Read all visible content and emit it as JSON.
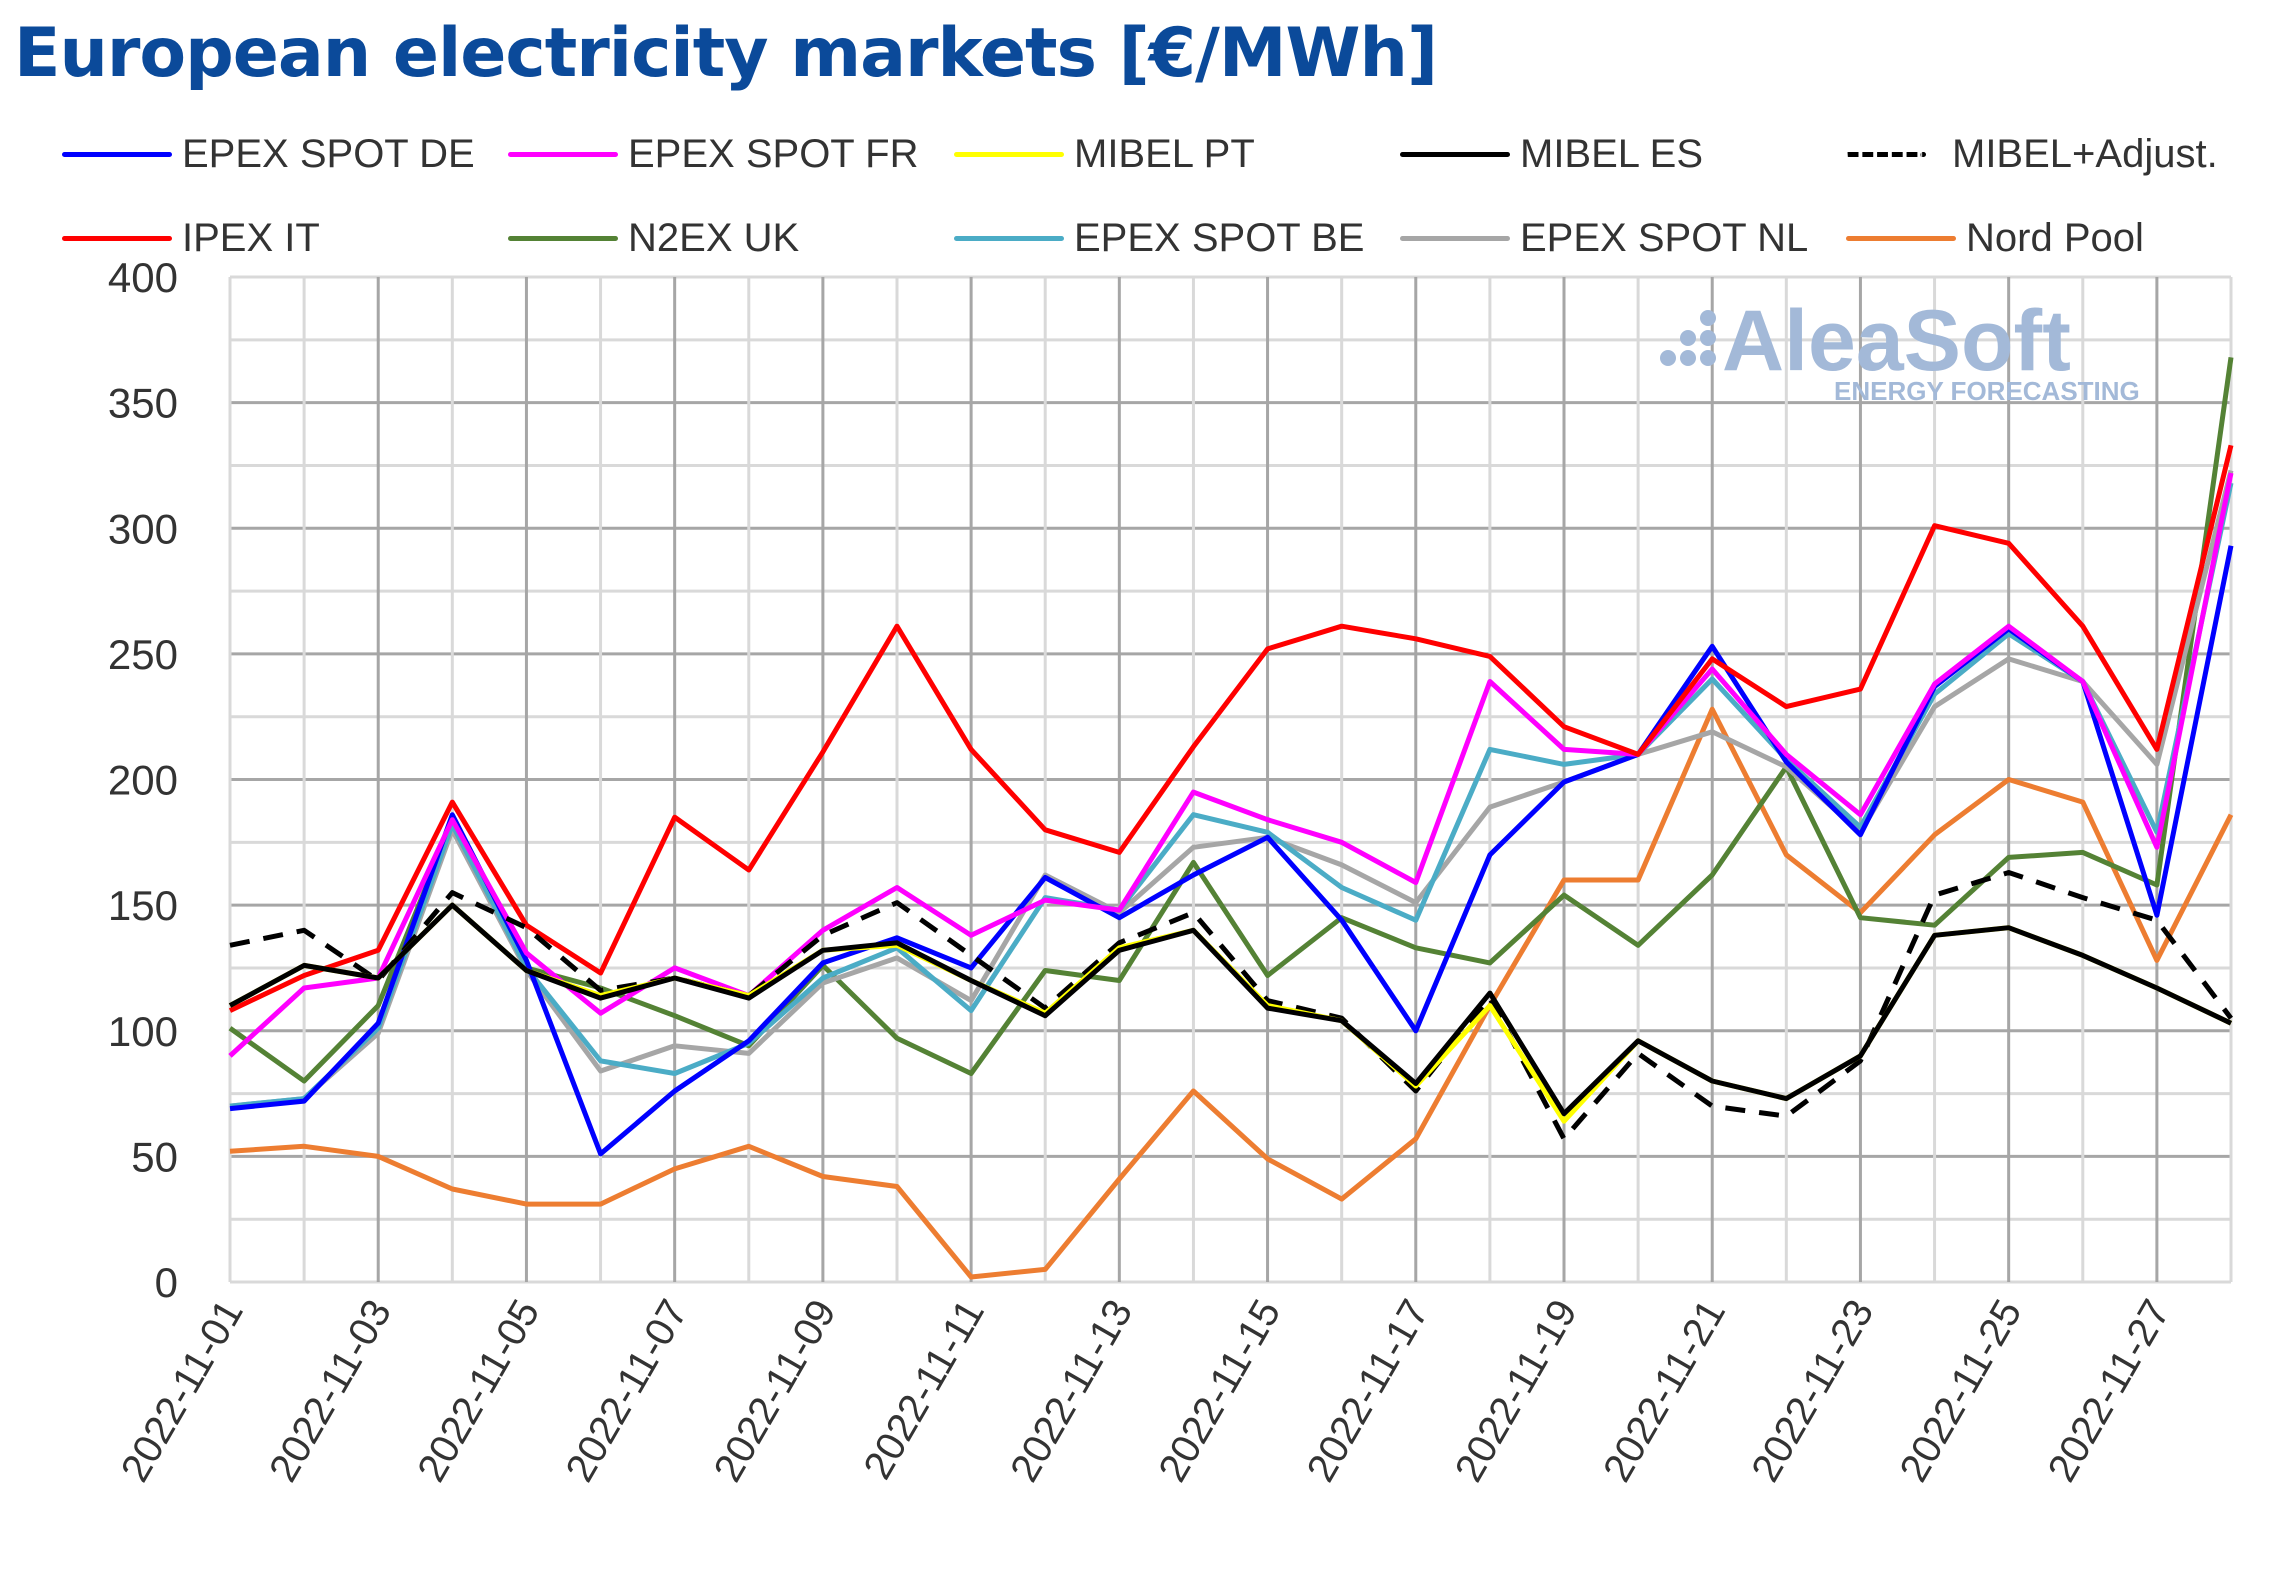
{
  "title": "European electricity markets [€/MWh]",
  "colors": {
    "title": "#0b4a9a",
    "grid_major": "#a6a6a6",
    "grid_minor": "#d9d9d9",
    "logo": "#a3b9d8"
  },
  "logo": {
    "name": "AleaSoft",
    "tagline": "ENERGY FORECASTING"
  },
  "chart_data": {
    "type": "line",
    "title": "European electricity markets [€/MWh]",
    "xlabel": "",
    "ylabel": "",
    "ylim": [
      0,
      400
    ],
    "yticks": [
      0,
      50,
      100,
      150,
      200,
      250,
      300,
      350,
      400
    ],
    "ytick_labels": [
      "0",
      "50",
      "100",
      "150",
      "200",
      "250",
      "300",
      "350",
      "400"
    ],
    "grid": true,
    "legend_position": "top",
    "x": [
      "2022-11-01",
      "2022-11-02",
      "2022-11-03",
      "2022-11-04",
      "2022-11-05",
      "2022-11-06",
      "2022-11-07",
      "2022-11-08",
      "2022-11-09",
      "2022-11-10",
      "2022-11-11",
      "2022-11-12",
      "2022-11-13",
      "2022-11-14",
      "2022-11-15",
      "2022-11-16",
      "2022-11-17",
      "2022-11-18",
      "2022-11-19",
      "2022-11-20",
      "2022-11-21",
      "2022-11-22",
      "2022-11-23",
      "2022-11-24",
      "2022-11-25",
      "2022-11-26",
      "2022-11-27",
      "2022-11-28"
    ],
    "xtick_labels": [
      "2022-11-01",
      "2022-11-03",
      "2022-11-05",
      "2022-11-07",
      "2022-11-09",
      "2022-11-11",
      "2022-11-13",
      "2022-11-15",
      "2022-11-17",
      "2022-11-19",
      "2022-11-21",
      "2022-11-23",
      "2022-11-25",
      "2022-11-27"
    ],
    "series": [
      {
        "name": "EPEX SPOT DE",
        "color": "#0000ff",
        "dash": false,
        "values": [
          69,
          72,
          103,
          186,
          128,
          51,
          76,
          96,
          127,
          137,
          125,
          161,
          145,
          162,
          177,
          144,
          100,
          170,
          199,
          210,
          253,
          207,
          178,
          237,
          260,
          239,
          146,
          293
        ]
      },
      {
        "name": "EPEX SPOT FR",
        "color": "#ff00ff",
        "dash": false,
        "values": [
          90,
          117,
          121,
          184,
          131,
          107,
          125,
          114,
          140,
          157,
          138,
          152,
          148,
          195,
          184,
          175,
          159,
          239,
          212,
          210,
          244,
          210,
          186,
          238,
          261,
          239,
          173,
          322
        ]
      },
      {
        "name": "MIBEL PT",
        "color": "#ffff00",
        "dash": false,
        "values": [
          110,
          126,
          121,
          150,
          124,
          114,
          121,
          114,
          132,
          134,
          120,
          107,
          133,
          140,
          110,
          104,
          78,
          110,
          64,
          96,
          80,
          73,
          90,
          138,
          141,
          130,
          117,
          103
        ]
      },
      {
        "name": "MIBEL ES",
        "color": "#000000",
        "dash": false,
        "values": [
          110,
          126,
          121,
          150,
          124,
          113,
          121,
          113,
          132,
          135,
          120,
          106,
          132,
          140,
          109,
          104,
          79,
          115,
          67,
          96,
          80,
          73,
          90,
          138,
          141,
          130,
          117,
          103
        ]
      },
      {
        "name": "MIBEL+Adjust.",
        "color": "#000000",
        "dash": true,
        "values": [
          134,
          140,
          120,
          155,
          141,
          116,
          121,
          114,
          138,
          151,
          130,
          109,
          135,
          147,
          112,
          105,
          76,
          113,
          57,
          91,
          70,
          66,
          88,
          154,
          163,
          153,
          144,
          105
        ]
      },
      {
        "name": "IPEX IT",
        "color": "#ff0000",
        "dash": false,
        "values": [
          108,
          122,
          132,
          191,
          142,
          123,
          185,
          164,
          211,
          261,
          212,
          180,
          171,
          213,
          252,
          261,
          256,
          249,
          221,
          210,
          248,
          229,
          236,
          301,
          294,
          261,
          212,
          333
        ]
      },
      {
        "name": "N2EX UK",
        "color": "#548235",
        "dash": false,
        "values": [
          101,
          80,
          110,
          183,
          125,
          117,
          106,
          94,
          126,
          97,
          83,
          124,
          120,
          167,
          122,
          145,
          133,
          127,
          154,
          134,
          162,
          205,
          145,
          142,
          169,
          171,
          158,
          368
        ]
      },
      {
        "name": "EPEX SPOT BE",
        "color": "#4bacc6",
        "dash": false,
        "values": [
          70,
          73,
          101,
          182,
          125,
          88,
          83,
          95,
          121,
          133,
          108,
          153,
          148,
          186,
          179,
          157,
          144,
          212,
          206,
          210,
          240,
          208,
          181,
          234,
          258,
          239,
          179,
          318
        ]
      },
      {
        "name": "EPEX SPOT NL",
        "color": "#a6a6a6",
        "dash": false,
        "values": [
          70,
          73,
          99,
          180,
          124,
          84,
          94,
          91,
          119,
          129,
          112,
          162,
          147,
          173,
          177,
          166,
          151,
          189,
          199,
          210,
          219,
          205,
          179,
          229,
          248,
          239,
          206,
          323
        ]
      },
      {
        "name": "Nord Pool",
        "color": "#ed7d31",
        "dash": false,
        "values": [
          52,
          54,
          50,
          37,
          31,
          31,
          45,
          54,
          42,
          38,
          2,
          5,
          41,
          76,
          49,
          33,
          57,
          110,
          160,
          160,
          228,
          170,
          147,
          178,
          200,
          191,
          128,
          186
        ]
      }
    ]
  }
}
